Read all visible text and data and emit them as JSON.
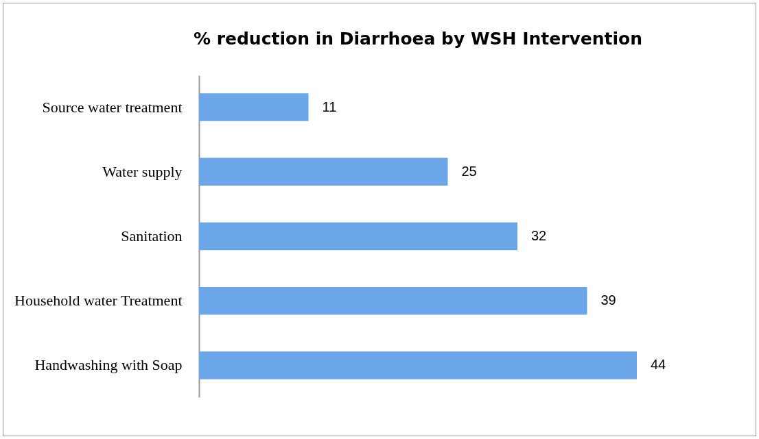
{
  "chart_data": {
    "type": "bar",
    "orientation": "horizontal",
    "title": "% reduction in Diarrhoea by WSH Intervention",
    "categories": [
      "Source water treatment",
      "Water supply",
      "Sanitation",
      "Household water Treatment",
      "Handwashing with Soap"
    ],
    "values": [
      11,
      25,
      32,
      39,
      44
    ],
    "color": "#6aa6e8",
    "data_labels": true
  }
}
